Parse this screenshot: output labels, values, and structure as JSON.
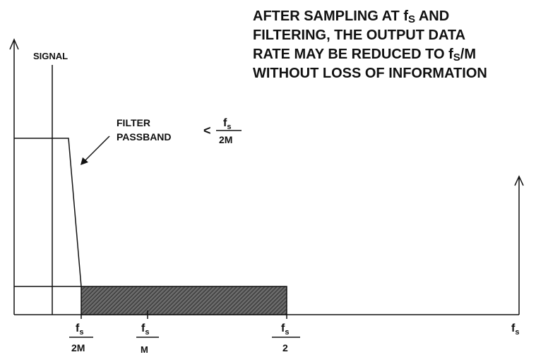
{
  "title": {
    "line1_a": "AFTER SAMPLING AT f",
    "line1_sub": "S",
    "line1_b": " AND",
    "line2": "FILTERING, THE OUTPUT DATA",
    "line3_a": "RATE MAY BE REDUCED TO f",
    "line3_sub": "S",
    "line3_b": "/M",
    "line4": "WITHOUT LOSS OF INFORMATION"
  },
  "labels": {
    "signal": "SIGNAL",
    "filter": "FILTER",
    "passband": "PASSBAND",
    "less_than": "<",
    "bw_num": "f",
    "bw_num_sub": "s",
    "bw_den": "2M"
  },
  "ticks": [
    {
      "num": "f",
      "sub": "s",
      "den": "2M"
    },
    {
      "num": "f",
      "sub": "s",
      "den": "M"
    },
    {
      "num": "f",
      "sub": "s",
      "den": "2"
    }
  ],
  "axis_label": {
    "text": "f",
    "sub": "s"
  },
  "colors": {
    "ink": "#111111",
    "hatch_fill": "#555555",
    "background": "#ffffff"
  }
}
